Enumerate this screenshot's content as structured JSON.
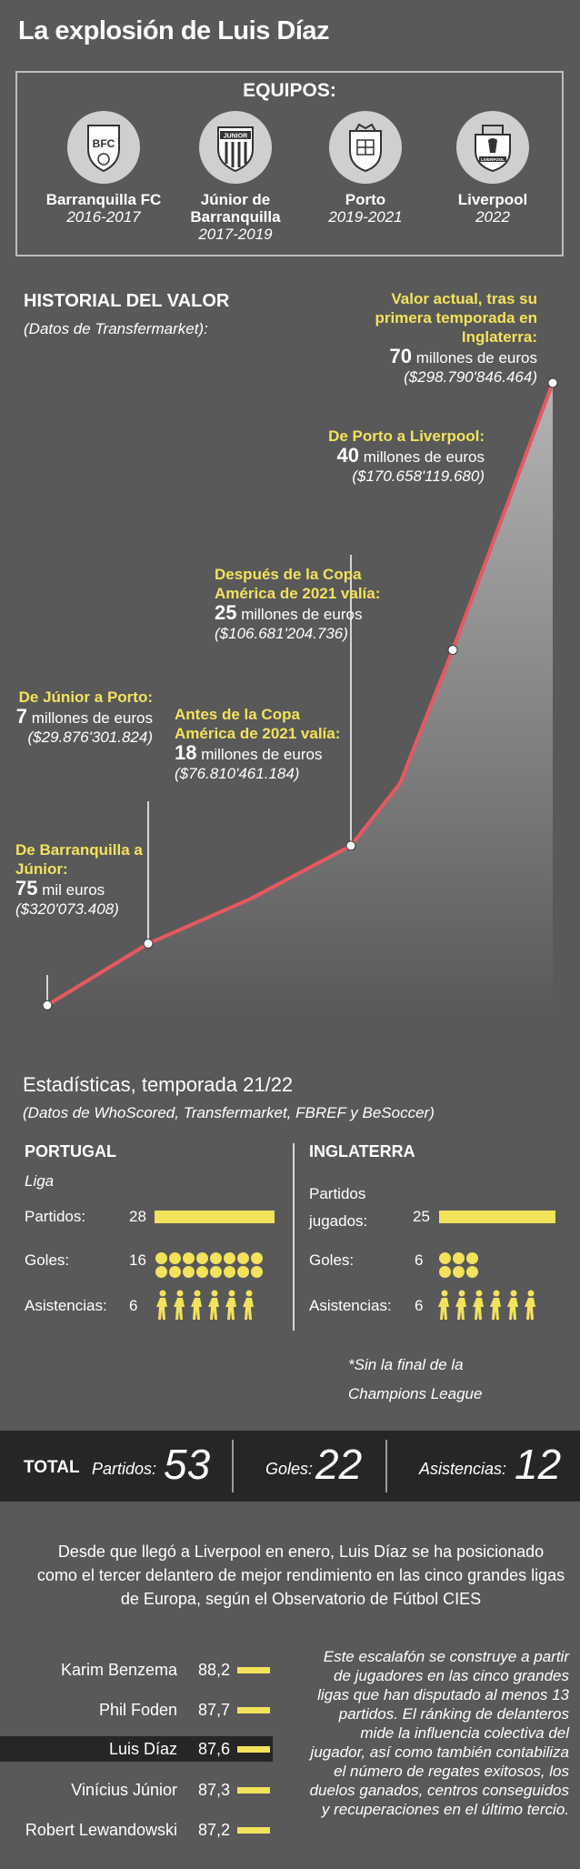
{
  "title": "La explosión de Luis Díaz",
  "teams": {
    "heading": "EQUIPOS:",
    "items": [
      {
        "name": "Barranquilla FC",
        "years": "2016-2017",
        "crest_text": "BFC"
      },
      {
        "name": "Júnior de Barranquilla",
        "years": "2017-2019",
        "crest_text": "JUNIOR"
      },
      {
        "name": "Porto",
        "years": "2019-2021",
        "crest_text": ""
      },
      {
        "name": "Liverpool",
        "years": "2022",
        "crest_text": "LIVERPOOL"
      }
    ]
  },
  "valuation": {
    "heading": "HISTORIAL DEL VALOR",
    "source": "(Datos de Transfermarket):",
    "milestones": [
      {
        "label": "De Barranquilla a Júnior:",
        "num": "75",
        "unit": "mil euros",
        "pesos": "($320'073.408)"
      },
      {
        "label": "De Júnior a Porto:",
        "num": "7",
        "unit": "millones de euros",
        "pesos": "($29.876'301.824)"
      },
      {
        "label": "Antes de la Copa América de 2021 valía:",
        "num": "18",
        "unit": "millones de euros",
        "pesos": "($76.810'461.184)"
      },
      {
        "label": "Después de la Copa América de 2021 valía:",
        "num": "25",
        "unit": "millones de euros",
        "pesos": "($106.681'204.736)"
      },
      {
        "label": "De Porto a Liverpool:",
        "num": "40",
        "unit": "millones de euros",
        "pesos": "($170.658'119.680)"
      },
      {
        "label": "Valor actual, tras su primera temporada en Inglaterra:",
        "num": "70",
        "unit": "millones de euros",
        "pesos": "($298.790'846.464)"
      }
    ]
  },
  "chart_data": {
    "type": "area",
    "title": "HISTORIAL DEL VALOR",
    "xlabel": "",
    "ylabel": "",
    "values": [
      0.075,
      7,
      12,
      18,
      25,
      40,
      70
    ],
    "points_labeled": [
      true,
      true,
      false,
      true,
      false,
      true,
      true
    ],
    "colors": {
      "line": "#e8585f",
      "fill": "#ffffff",
      "point": "#ffffff"
    }
  },
  "stats": {
    "title": "Estadísticas, temporada 21/22",
    "source": "(Datos de WhoScored, Transfermarket, FBREF y BeSoccer)",
    "portugal": {
      "heading": "PORTUGAL",
      "sub": "Liga",
      "rows": [
        {
          "label": "Partidos:",
          "value": "28"
        },
        {
          "label": "Goles:",
          "value": "16"
        },
        {
          "label": "Asistencias:",
          "value": "6"
        }
      ]
    },
    "inglaterra": {
      "heading": "INGLATERRA",
      "rows": [
        {
          "label": "Partidos jugados:",
          "value": "25"
        },
        {
          "label": "Goles:",
          "value": "6"
        },
        {
          "label": "Asistencias:",
          "value": "6"
        }
      ]
    },
    "footnote": "*Sin la final de la Champions League"
  },
  "total": {
    "label": "TOTAL",
    "partidos_label": "Partidos:",
    "partidos": "53",
    "goles_label": "Goles:",
    "goles": "22",
    "asistencias_label": "Asistencias:",
    "asistencias": "12"
  },
  "cies": {
    "text": "Desde que llegó a Liverpool en enero, Luis Díaz se ha posicionado como el tercer delantero de mejor rendimiento en las cinco grandes ligas de Europa, según el Observatorio de Fútbol CIES",
    "ranking": [
      {
        "name": "Karim Benzema",
        "value": "88,2"
      },
      {
        "name": "Phil Foden",
        "value": "87,7"
      },
      {
        "name": "Luis Díaz",
        "value": "87,6",
        "highlight": true
      },
      {
        "name": "Vinícius Júnior",
        "value": "87,3"
      },
      {
        "name": "Robert Lewandowski",
        "value": "87,2"
      }
    ],
    "explanation": "Este escalafón se construye a partir de jugadores en las cinco grandes ligas que han disputado al menos 13 partidos. El ránking de delanteros mide la influencia colectiva del jugador, así como también contabiliza el número de regates exitosos, los duelos ganados, centros conseguidos y recuperaciones en el último tercio."
  },
  "colors": {
    "accent": "#f3e25c",
    "background": "#595959",
    "dark": "#262626",
    "line": "#e8585f"
  }
}
